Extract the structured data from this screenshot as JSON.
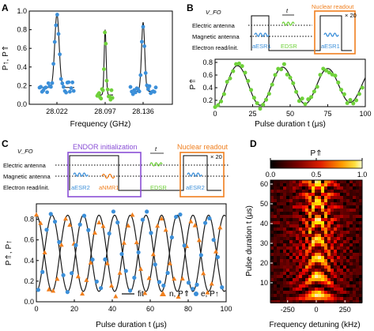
{
  "panels": {
    "A": {
      "letter": "A",
      "xlabel": "Frequency (GHz)",
      "ylabel": "P↑, P⇑",
      "xticks": [
        "28.022",
        "28.097",
        "28.136"
      ],
      "yticks": [
        "0.0",
        "0.2",
        "0.4",
        "0.6",
        "0.8",
        "1.0"
      ]
    },
    "B": {
      "letter": "B",
      "vfo": "V_FO",
      "t": "t",
      "rows": [
        "Electric antenna",
        "Magnetic antenna",
        "Electron read/init."
      ],
      "pulses": [
        "aESR1",
        "EDSR",
        "aESR1"
      ],
      "nuclear_readout": "Nuclear readout",
      "repeat": "× 20",
      "xlabel": "Pulse duration t (μs)",
      "ylabel": "P⇑",
      "xticks": [
        "0",
        "25",
        "50",
        "75",
        "100"
      ],
      "yticks": [
        "0.2",
        "0.4",
        "0.6",
        "0.8"
      ]
    },
    "C": {
      "letter": "C",
      "vfo": "V_FO",
      "t": "t",
      "endor": "ENDOR initialization",
      "nuclear_readout": "Nuclear readout",
      "repeat": "× 20",
      "rows": [
        "Electric antenna",
        "Magnetic antenna",
        "Electron read/init."
      ],
      "pulses": [
        "aESR2",
        "aNMR1",
        "EDSR",
        "aESR2"
      ],
      "xlabel": "Pulse duration t (μs)",
      "ylabel": "P⇑, P↑",
      "xticks": [
        "0",
        "20",
        "40",
        "60",
        "80",
        "100"
      ],
      "yticks": [
        "0.0",
        "0.2",
        "0.4",
        "0.6",
        "0.8"
      ],
      "legend": [
        "fit",
        "n, P⇑",
        "e, P↑"
      ]
    },
    "D": {
      "letter": "D",
      "cbar_label": "P⇑",
      "cbar_ticks": [
        "0.0",
        "0.5",
        "1.0"
      ],
      "xlabel": "Frequency detuning (kHz)",
      "ylabel": "Pulse duration t (μs)",
      "xticks": [
        "-250",
        "0",
        "250"
      ],
      "yticks": [
        "10",
        "20",
        "30",
        "40",
        "50",
        "60"
      ]
    }
  },
  "colors": {
    "green": "#6fd13a",
    "blue": "#3b8fd9",
    "orange": "#f07f1e",
    "purple": "#8a4fd6",
    "fit": "#1a1a1a"
  },
  "chart_data": [
    {
      "type": "scatter",
      "panel": "A",
      "xlabel": "Frequency (GHz)",
      "ylabel": "P↑, P⇑",
      "ylim": [
        0,
        1
      ],
      "peaks": [
        {
          "x": "28.022",
          "peak": 0.97,
          "baseline": 0.18,
          "color": "blue"
        },
        {
          "x": "28.097",
          "peak": 0.8,
          "baseline": 0.1,
          "color": "green"
        },
        {
          "x": "28.136",
          "peak": 0.88,
          "baseline": 0.14,
          "color": "blue"
        }
      ]
    },
    {
      "type": "scatter",
      "panel": "B",
      "xlabel": "Pulse duration t (μs)",
      "ylabel": "P⇑",
      "xlim": [
        0,
        100
      ],
      "ylim": [
        0.1,
        0.85
      ],
      "fit": {
        "offset": 0.43,
        "amplitude": 0.33,
        "period_us": 30,
        "phase_deg": 90
      },
      "series": [
        {
          "color": "green",
          "n_points": 50
        }
      ]
    },
    {
      "type": "scatter",
      "panel": "C",
      "xlabel": "Pulse duration t (μs)",
      "ylabel": "P⇑, P↑",
      "xlim": [
        0,
        100
      ],
      "ylim": [
        0,
        0.95
      ],
      "fit": {
        "offset": 0.47,
        "amplitude": 0.37,
        "period_us": 16.5
      },
      "series": [
        {
          "name": "n, P⇑",
          "color": "orange",
          "marker": "triangle",
          "n_points": 45
        },
        {
          "name": "e, P↑",
          "color": "blue",
          "marker": "circle",
          "n_points": 45
        }
      ]
    },
    {
      "type": "heatmap",
      "panel": "D",
      "xlabel": "Frequency detuning (kHz)",
      "ylabel": "Pulse duration t (μs)",
      "xlim": [
        -400,
        400
      ],
      "ylim": [
        0,
        62
      ],
      "zlim": [
        0,
        1
      ],
      "rabi_period_us": 9.5
    }
  ]
}
